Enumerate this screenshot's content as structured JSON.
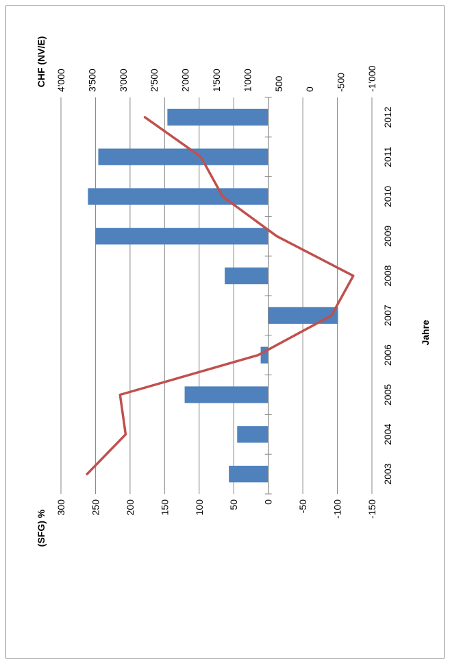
{
  "chart_data": {
    "type": "bar",
    "orientation": "rotated-90-clockwise",
    "categories": [
      "2003",
      "2004",
      "2005",
      "2006",
      "2007",
      "2008",
      "2009",
      "2010",
      "2011",
      "2012"
    ],
    "series": [
      {
        "kind": "bar",
        "axis": "left",
        "color": "#4f81bd",
        "values": [
          57,
          45,
          121,
          11,
          -101,
          63,
          250,
          261,
          246,
          146
        ]
      },
      {
        "kind": "line",
        "axis": "right",
        "color": "#c0504d",
        "values": [
          3580,
          2960,
          3050,
          830,
          -350,
          -700,
          530,
          1400,
          1750,
          2650
        ]
      }
    ],
    "left_axis": {
      "title": "(SFG) %",
      "ylim": [
        -150,
        300
      ],
      "ticks": [
        "300",
        "250",
        "200",
        "150",
        "100",
        "50",
        "0",
        "-50",
        "-100",
        "-150"
      ]
    },
    "right_axis": {
      "title": "CHF (NV/E)",
      "ylim": [
        -1000,
        4000
      ],
      "ticks": [
        "4'000",
        "3'500",
        "3'000",
        "2'500",
        "2'000",
        "1'500",
        "1'000",
        "500",
        "0",
        "-500",
        "-1'000"
      ]
    },
    "xlabel": "Jahre",
    "grid": true,
    "legend": "none"
  }
}
